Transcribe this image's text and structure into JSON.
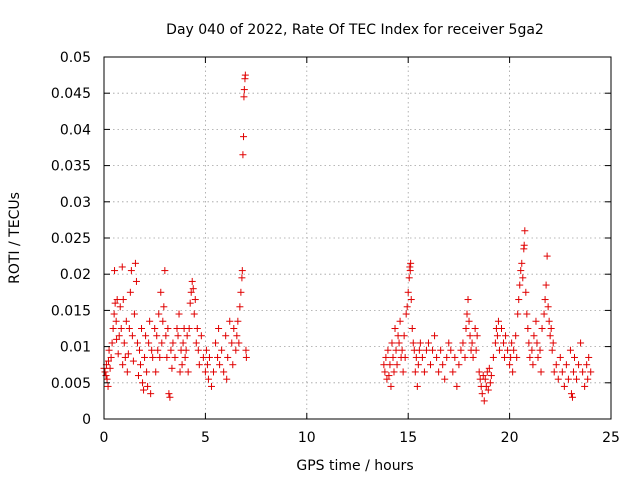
{
  "chart_data": {
    "type": "scatter",
    "title": "Day 040 of 2022, Rate Of TEC Index for receiver 5ga2",
    "xlabel": "GPS time / hours",
    "ylabel": "ROTI / TECUs",
    "xlim": [
      0,
      25
    ],
    "ylim": [
      0,
      0.05
    ],
    "xticks": [
      "0",
      "5",
      "10",
      "15",
      "20",
      "25"
    ],
    "yticks": [
      "0",
      "0.005",
      "0.01",
      "0.015",
      "0.02",
      "0.025",
      "0.03",
      "0.035",
      "0.04",
      "0.045",
      "0.05"
    ],
    "grid": true,
    "marker": "+",
    "color": "#e00000",
    "series": [
      {
        "name": "ROTI",
        "points": [
          [
            0.0,
            0.007
          ],
          [
            0.05,
            0.0065
          ],
          [
            0.1,
            0.006
          ],
          [
            0.12,
            0.0075
          ],
          [
            0.15,
            0.0055
          ],
          [
            0.2,
            0.0045
          ],
          [
            0.22,
            0.008
          ],
          [
            0.25,
            0.0095
          ],
          [
            0.3,
            0.007
          ],
          [
            0.35,
            0.0085
          ],
          [
            0.4,
            0.0105
          ],
          [
            0.45,
            0.0125
          ],
          [
            0.5,
            0.0145
          ],
          [
            0.52,
            0.0205
          ],
          [
            0.55,
            0.016
          ],
          [
            0.6,
            0.0135
          ],
          [
            0.62,
            0.011
          ],
          [
            0.65,
            0.0165
          ],
          [
            0.7,
            0.009
          ],
          [
            0.75,
            0.0115
          ],
          [
            0.8,
            0.0155
          ],
          [
            0.85,
            0.0125
          ],
          [
            0.9,
            0.021
          ],
          [
            0.92,
            0.0075
          ],
          [
            0.95,
            0.0165
          ],
          [
            1.0,
            0.0105
          ],
          [
            1.05,
            0.0085
          ],
          [
            1.1,
            0.0135
          ],
          [
            1.15,
            0.0065
          ],
          [
            1.2,
            0.009
          ],
          [
            1.25,
            0.0125
          ],
          [
            1.3,
            0.0175
          ],
          [
            1.35,
            0.0205
          ],
          [
            1.4,
            0.0115
          ],
          [
            1.45,
            0.008
          ],
          [
            1.5,
            0.0145
          ],
          [
            1.55,
            0.0215
          ],
          [
            1.6,
            0.019
          ],
          [
            1.65,
            0.0105
          ],
          [
            1.7,
            0.006
          ],
          [
            1.75,
            0.0095
          ],
          [
            1.8,
            0.0075
          ],
          [
            1.85,
            0.0125
          ],
          [
            1.9,
            0.005
          ],
          [
            1.95,
            0.004
          ],
          [
            2.0,
            0.0085
          ],
          [
            2.05,
            0.0115
          ],
          [
            2.1,
            0.0065
          ],
          [
            2.15,
            0.0045
          ],
          [
            2.2,
            0.0105
          ],
          [
            2.25,
            0.0135
          ],
          [
            2.3,
            0.0035
          ],
          [
            2.35,
            0.0095
          ],
          [
            2.4,
            0.0085
          ],
          [
            2.5,
            0.0125
          ],
          [
            2.55,
            0.0065
          ],
          [
            2.6,
            0.0115
          ],
          [
            2.65,
            0.0095
          ],
          [
            2.7,
            0.0145
          ],
          [
            2.75,
            0.0085
          ],
          [
            2.8,
            0.0175
          ],
          [
            2.85,
            0.0105
          ],
          [
            2.9,
            0.0135
          ],
          [
            2.95,
            0.0155
          ],
          [
            3.0,
            0.0205
          ],
          [
            3.05,
            0.0115
          ],
          [
            3.1,
            0.0085
          ],
          [
            3.15,
            0.0125
          ],
          [
            3.2,
            0.0035
          ],
          [
            3.25,
            0.003
          ],
          [
            3.3,
            0.0095
          ],
          [
            3.35,
            0.007
          ],
          [
            3.4,
            0.0105
          ],
          [
            3.5,
            0.0085
          ],
          [
            3.6,
            0.0125
          ],
          [
            3.65,
            0.0115
          ],
          [
            3.7,
            0.0145
          ],
          [
            3.75,
            0.0065
          ],
          [
            3.8,
            0.0095
          ],
          [
            3.85,
            0.0075
          ],
          [
            3.9,
            0.0105
          ],
          [
            3.95,
            0.0125
          ],
          [
            4.0,
            0.0085
          ],
          [
            4.05,
            0.0095
          ],
          [
            4.1,
            0.0115
          ],
          [
            4.15,
            0.0065
          ],
          [
            4.2,
            0.0125
          ],
          [
            4.25,
            0.016
          ],
          [
            4.3,
            0.0175
          ],
          [
            4.35,
            0.019
          ],
          [
            4.4,
            0.018
          ],
          [
            4.45,
            0.0145
          ],
          [
            4.5,
            0.0165
          ],
          [
            4.55,
            0.0105
          ],
          [
            4.6,
            0.0125
          ],
          [
            4.65,
            0.0095
          ],
          [
            4.7,
            0.0075
          ],
          [
            4.8,
            0.0115
          ],
          [
            4.9,
            0.0085
          ],
          [
            5.0,
            0.0065
          ],
          [
            5.05,
            0.0095
          ],
          [
            5.1,
            0.0075
          ],
          [
            5.15,
            0.0055
          ],
          [
            5.2,
            0.0085
          ],
          [
            5.3,
            0.0045
          ],
          [
            5.4,
            0.0065
          ],
          [
            5.5,
            0.0105
          ],
          [
            5.6,
            0.0085
          ],
          [
            5.65,
            0.0125
          ],
          [
            5.7,
            0.0075
          ],
          [
            5.8,
            0.0095
          ],
          [
            5.9,
            0.0065
          ],
          [
            6.0,
            0.0115
          ],
          [
            6.05,
            0.0055
          ],
          [
            6.1,
            0.0085
          ],
          [
            6.2,
            0.0135
          ],
          [
            6.3,
            0.0105
          ],
          [
            6.35,
            0.0075
          ],
          [
            6.4,
            0.0125
          ],
          [
            6.5,
            0.0095
          ],
          [
            6.55,
            0.0115
          ],
          [
            6.6,
            0.0135
          ],
          [
            6.65,
            0.0105
          ],
          [
            6.7,
            0.0155
          ],
          [
            6.75,
            0.0175
          ],
          [
            6.8,
            0.0195
          ],
          [
            6.82,
            0.0205
          ],
          [
            6.85,
            0.0365
          ],
          [
            6.88,
            0.039
          ],
          [
            6.9,
            0.0445
          ],
          [
            6.92,
            0.0455
          ],
          [
            6.95,
            0.047
          ],
          [
            6.97,
            0.0475
          ],
          [
            7.0,
            0.0095
          ],
          [
            7.02,
            0.0085
          ],
          [
            13.8,
            0.0075
          ],
          [
            13.85,
            0.0065
          ],
          [
            13.9,
            0.0085
          ],
          [
            13.95,
            0.0055
          ],
          [
            14.0,
            0.0095
          ],
          [
            14.05,
            0.006
          ],
          [
            14.1,
            0.0075
          ],
          [
            14.15,
            0.0045
          ],
          [
            14.2,
            0.0105
          ],
          [
            14.25,
            0.0085
          ],
          [
            14.3,
            0.0065
          ],
          [
            14.35,
            0.0125
          ],
          [
            14.4,
            0.0095
          ],
          [
            14.45,
            0.0075
          ],
          [
            14.5,
            0.0115
          ],
          [
            14.55,
            0.0105
          ],
          [
            14.6,
            0.0135
          ],
          [
            14.65,
            0.0085
          ],
          [
            14.7,
            0.0095
          ],
          [
            14.75,
            0.0065
          ],
          [
            14.8,
            0.0115
          ],
          [
            14.85,
            0.0085
          ],
          [
            14.9,
            0.0145
          ],
          [
            14.95,
            0.0155
          ],
          [
            15.0,
            0.0175
          ],
          [
            15.05,
            0.0195
          ],
          [
            15.08,
            0.021
          ],
          [
            15.1,
            0.0205
          ],
          [
            15.12,
            0.0215
          ],
          [
            15.15,
            0.0165
          ],
          [
            15.2,
            0.0125
          ],
          [
            15.25,
            0.0105
          ],
          [
            15.3,
            0.0095
          ],
          [
            15.35,
            0.0065
          ],
          [
            15.4,
            0.0085
          ],
          [
            15.45,
            0.0045
          ],
          [
            15.5,
            0.0075
          ],
          [
            15.55,
            0.0095
          ],
          [
            15.6,
            0.0105
          ],
          [
            15.7,
            0.0085
          ],
          [
            15.8,
            0.0065
          ],
          [
            15.9,
            0.0095
          ],
          [
            16.0,
            0.0105
          ],
          [
            16.1,
            0.0075
          ],
          [
            16.2,
            0.0095
          ],
          [
            16.3,
            0.0115
          ],
          [
            16.4,
            0.0085
          ],
          [
            16.5,
            0.0065
          ],
          [
            16.6,
            0.0095
          ],
          [
            16.7,
            0.0075
          ],
          [
            16.8,
            0.0055
          ],
          [
            16.9,
            0.0085
          ],
          [
            17.0,
            0.0105
          ],
          [
            17.1,
            0.0095
          ],
          [
            17.2,
            0.0065
          ],
          [
            17.3,
            0.0085
          ],
          [
            17.4,
            0.0045
          ],
          [
            17.5,
            0.0075
          ],
          [
            17.6,
            0.0095
          ],
          [
            17.7,
            0.0105
          ],
          [
            17.8,
            0.0085
          ],
          [
            17.85,
            0.0125
          ],
          [
            17.9,
            0.0145
          ],
          [
            17.95,
            0.0165
          ],
          [
            18.0,
            0.0135
          ],
          [
            18.05,
            0.0115
          ],
          [
            18.1,
            0.0095
          ],
          [
            18.15,
            0.0105
          ],
          [
            18.2,
            0.0085
          ],
          [
            18.3,
            0.0125
          ],
          [
            18.35,
            0.0095
          ],
          [
            18.4,
            0.0115
          ],
          [
            18.5,
            0.0065
          ],
          [
            18.55,
            0.0055
          ],
          [
            18.6,
            0.0045
          ],
          [
            18.65,
            0.0035
          ],
          [
            18.7,
            0.006
          ],
          [
            18.75,
            0.0025
          ],
          [
            18.8,
            0.0055
          ],
          [
            18.85,
            0.0045
          ],
          [
            18.9,
            0.0065
          ],
          [
            18.95,
            0.004
          ],
          [
            19.0,
            0.007
          ],
          [
            19.05,
            0.005
          ],
          [
            19.1,
            0.006
          ],
          [
            19.2,
            0.0085
          ],
          [
            19.3,
            0.0105
          ],
          [
            19.35,
            0.0125
          ],
          [
            19.4,
            0.0115
          ],
          [
            19.45,
            0.0135
          ],
          [
            19.5,
            0.0095
          ],
          [
            19.6,
            0.0125
          ],
          [
            19.7,
            0.0105
          ],
          [
            19.75,
            0.0085
          ],
          [
            19.8,
            0.0115
          ],
          [
            19.9,
            0.0095
          ],
          [
            20.0,
            0.0075
          ],
          [
            20.05,
            0.0085
          ],
          [
            20.1,
            0.0105
          ],
          [
            20.15,
            0.0065
          ],
          [
            20.2,
            0.0095
          ],
          [
            20.3,
            0.0115
          ],
          [
            20.35,
            0.0085
          ],
          [
            20.4,
            0.0145
          ],
          [
            20.45,
            0.0165
          ],
          [
            20.5,
            0.0185
          ],
          [
            20.55,
            0.0205
          ],
          [
            20.6,
            0.0215
          ],
          [
            20.65,
            0.0195
          ],
          [
            20.7,
            0.0235
          ],
          [
            20.72,
            0.024
          ],
          [
            20.75,
            0.026
          ],
          [
            20.8,
            0.0175
          ],
          [
            20.85,
            0.0145
          ],
          [
            20.9,
            0.0125
          ],
          [
            20.95,
            0.0105
          ],
          [
            21.0,
            0.0085
          ],
          [
            21.1,
            0.0095
          ],
          [
            21.15,
            0.0075
          ],
          [
            21.2,
            0.0115
          ],
          [
            21.3,
            0.0135
          ],
          [
            21.35,
            0.0105
          ],
          [
            21.4,
            0.0085
          ],
          [
            21.5,
            0.0095
          ],
          [
            21.55,
            0.0065
          ],
          [
            21.6,
            0.0125
          ],
          [
            21.7,
            0.0145
          ],
          [
            21.75,
            0.0165
          ],
          [
            21.8,
            0.0185
          ],
          [
            21.85,
            0.0225
          ],
          [
            21.9,
            0.0155
          ],
          [
            21.95,
            0.0135
          ],
          [
            22.0,
            0.0115
          ],
          [
            22.05,
            0.0125
          ],
          [
            22.1,
            0.0095
          ],
          [
            22.15,
            0.0105
          ],
          [
            22.2,
            0.0065
          ],
          [
            22.3,
            0.0075
          ],
          [
            22.4,
            0.0055
          ],
          [
            22.5,
            0.0085
          ],
          [
            22.6,
            0.0065
          ],
          [
            22.7,
            0.0045
          ],
          [
            22.8,
            0.0075
          ],
          [
            22.9,
            0.0055
          ],
          [
            23.0,
            0.0095
          ],
          [
            23.05,
            0.0035
          ],
          [
            23.1,
            0.003
          ],
          [
            23.15,
            0.0065
          ],
          [
            23.2,
            0.0085
          ],
          [
            23.3,
            0.0055
          ],
          [
            23.4,
            0.0075
          ],
          [
            23.5,
            0.0105
          ],
          [
            23.6,
            0.0065
          ],
          [
            23.7,
            0.0045
          ],
          [
            23.8,
            0.0075
          ],
          [
            23.85,
            0.0055
          ],
          [
            23.9,
            0.0085
          ],
          [
            24.0,
            0.0065
          ]
        ]
      }
    ]
  }
}
